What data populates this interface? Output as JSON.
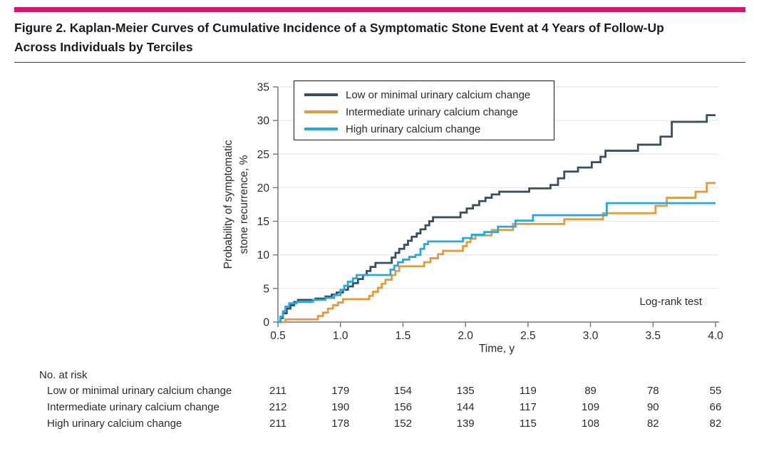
{
  "figure": {
    "title": "Figure 2. Kaplan-Meier Curves of Cumulative Incidence of a Symptomatic Stone Event at 4 Years of Follow-Up Across Individuals by Terciles",
    "title_lines": [
      "Figure 2. Kaplan-Meier Curves of Cumulative Incidence of a Symptomatic Stone Event at 4 Years of Follow-Up",
      "Across Individuals by Terciles"
    ],
    "accent_color": "#D5156E"
  },
  "chart_data": {
    "type": "line",
    "subtype": "kaplan-meier-step",
    "title": "",
    "xlabel": "Time, y",
    "ylabel": "Probability of symptomatic stone recurrence, %",
    "ylabel_lines": [
      "Probability of symptomatic",
      "stone recurrence, %"
    ],
    "xlim": [
      0.5,
      4.0
    ],
    "ylim": [
      0,
      35
    ],
    "x_ticks": [
      0.5,
      1.0,
      1.5,
      2.0,
      2.5,
      3.0,
      3.5,
      4.0
    ],
    "y_ticks": [
      0,
      5,
      10,
      15,
      20,
      25,
      30,
      35
    ],
    "grid": "horizontal",
    "gridline_color": "#E8E8E4",
    "axis_color": "#757575",
    "legend_position": "top-left-inside",
    "annotation": "Log-rank test",
    "series": [
      {
        "name": "Low or minimal urinary calcium change",
        "color": "#37505F",
        "points": [
          [
            0.5,
            0
          ],
          [
            0.52,
            0.6
          ],
          [
            0.54,
            1.3
          ],
          [
            0.57,
            2.0
          ],
          [
            0.6,
            2.5
          ],
          [
            0.63,
            3.0
          ],
          [
            0.66,
            3.3
          ],
          [
            0.8,
            3.5
          ],
          [
            0.88,
            3.8
          ],
          [
            0.93,
            4.1
          ],
          [
            0.97,
            4.4
          ],
          [
            1.02,
            4.8
          ],
          [
            1.06,
            5.3
          ],
          [
            1.1,
            5.8
          ],
          [
            1.14,
            6.4
          ],
          [
            1.18,
            7.0
          ],
          [
            1.21,
            7.6
          ],
          [
            1.24,
            8.2
          ],
          [
            1.28,
            8.8
          ],
          [
            1.41,
            9.6
          ],
          [
            1.44,
            10.3
          ],
          [
            1.47,
            10.9
          ],
          [
            1.51,
            11.5
          ],
          [
            1.54,
            12.1
          ],
          [
            1.57,
            12.7
          ],
          [
            1.61,
            13.2
          ],
          [
            1.64,
            13.8
          ],
          [
            1.68,
            14.4
          ],
          [
            1.71,
            15.0
          ],
          [
            1.74,
            15.6
          ],
          [
            1.96,
            16.3
          ],
          [
            2.01,
            16.9
          ],
          [
            2.06,
            17.4
          ],
          [
            2.11,
            18.0
          ],
          [
            2.16,
            18.5
          ],
          [
            2.21,
            19.0
          ],
          [
            2.27,
            19.4
          ],
          [
            2.51,
            19.9
          ],
          [
            2.68,
            20.4
          ],
          [
            2.74,
            21.4
          ],
          [
            2.79,
            22.4
          ],
          [
            2.9,
            23.0
          ],
          [
            3.01,
            23.8
          ],
          [
            3.08,
            24.6
          ],
          [
            3.12,
            25.5
          ],
          [
            3.38,
            26.4
          ],
          [
            3.56,
            27.6
          ],
          [
            3.65,
            29.8
          ],
          [
            3.93,
            30.8
          ],
          [
            4.0,
            30.8
          ]
        ]
      },
      {
        "name": "Intermediate urinary calcium change",
        "color": "#E59A3D",
        "points": [
          [
            0.5,
            0
          ],
          [
            0.56,
            0.4
          ],
          [
            0.82,
            0.9
          ],
          [
            0.86,
            1.4
          ],
          [
            0.9,
            2.0
          ],
          [
            0.94,
            2.5
          ],
          [
            0.98,
            2.9
          ],
          [
            1.02,
            3.4
          ],
          [
            1.23,
            3.9
          ],
          [
            1.26,
            4.5
          ],
          [
            1.3,
            5.1
          ],
          [
            1.33,
            5.7
          ],
          [
            1.36,
            6.3
          ],
          [
            1.41,
            7.0
          ],
          [
            1.44,
            7.6
          ],
          [
            1.47,
            8.3
          ],
          [
            1.67,
            8.9
          ],
          [
            1.72,
            9.5
          ],
          [
            1.78,
            10.1
          ],
          [
            1.82,
            10.6
          ],
          [
            1.98,
            11.3
          ],
          [
            2.01,
            11.9
          ],
          [
            2.04,
            12.4
          ],
          [
            2.08,
            12.9
          ],
          [
            2.21,
            13.7
          ],
          [
            2.38,
            14.6
          ],
          [
            2.79,
            15.3
          ],
          [
            3.1,
            16.2
          ],
          [
            3.52,
            17.3
          ],
          [
            3.61,
            18.5
          ],
          [
            3.84,
            19.4
          ],
          [
            3.93,
            20.7
          ],
          [
            4.0,
            20.7
          ]
        ]
      },
      {
        "name": "High urinary calcium change",
        "color": "#29A8E0",
        "points": [
          [
            0.5,
            0
          ],
          [
            0.52,
            0.8
          ],
          [
            0.54,
            1.6
          ],
          [
            0.56,
            2.3
          ],
          [
            0.59,
            2.8
          ],
          [
            0.65,
            3.0
          ],
          [
            0.78,
            3.3
          ],
          [
            0.88,
            3.6
          ],
          [
            0.95,
            4.0
          ],
          [
            1.0,
            4.8
          ],
          [
            1.03,
            5.4
          ],
          [
            1.06,
            6.0
          ],
          [
            1.1,
            6.5
          ],
          [
            1.13,
            7.0
          ],
          [
            1.4,
            7.8
          ],
          [
            1.43,
            8.4
          ],
          [
            1.46,
            8.9
          ],
          [
            1.5,
            9.3
          ],
          [
            1.55,
            9.7
          ],
          [
            1.6,
            10.0
          ],
          [
            1.64,
            10.9
          ],
          [
            1.67,
            11.6
          ],
          [
            1.7,
            12.0
          ],
          [
            1.98,
            12.5
          ],
          [
            2.05,
            13.0
          ],
          [
            2.15,
            13.4
          ],
          [
            2.26,
            14.2
          ],
          [
            2.4,
            15.1
          ],
          [
            2.54,
            15.9
          ],
          [
            3.13,
            17.7
          ],
          [
            4.0,
            17.7
          ]
        ]
      }
    ]
  },
  "risk_table": {
    "header": "No. at risk",
    "time_points": [
      0.5,
      1.0,
      1.5,
      2.0,
      2.5,
      3.0,
      3.5,
      4.0
    ],
    "rows": [
      {
        "label": "Low or minimal urinary calcium change",
        "counts": [
          211,
          179,
          154,
          135,
          119,
          89,
          78,
          55
        ]
      },
      {
        "label": "Intermediate urinary calcium change",
        "counts": [
          212,
          190,
          156,
          144,
          117,
          109,
          90,
          66
        ]
      },
      {
        "label": "High urinary calcium change",
        "counts": [
          211,
          178,
          152,
          139,
          115,
          108,
          82,
          82
        ]
      }
    ]
  }
}
